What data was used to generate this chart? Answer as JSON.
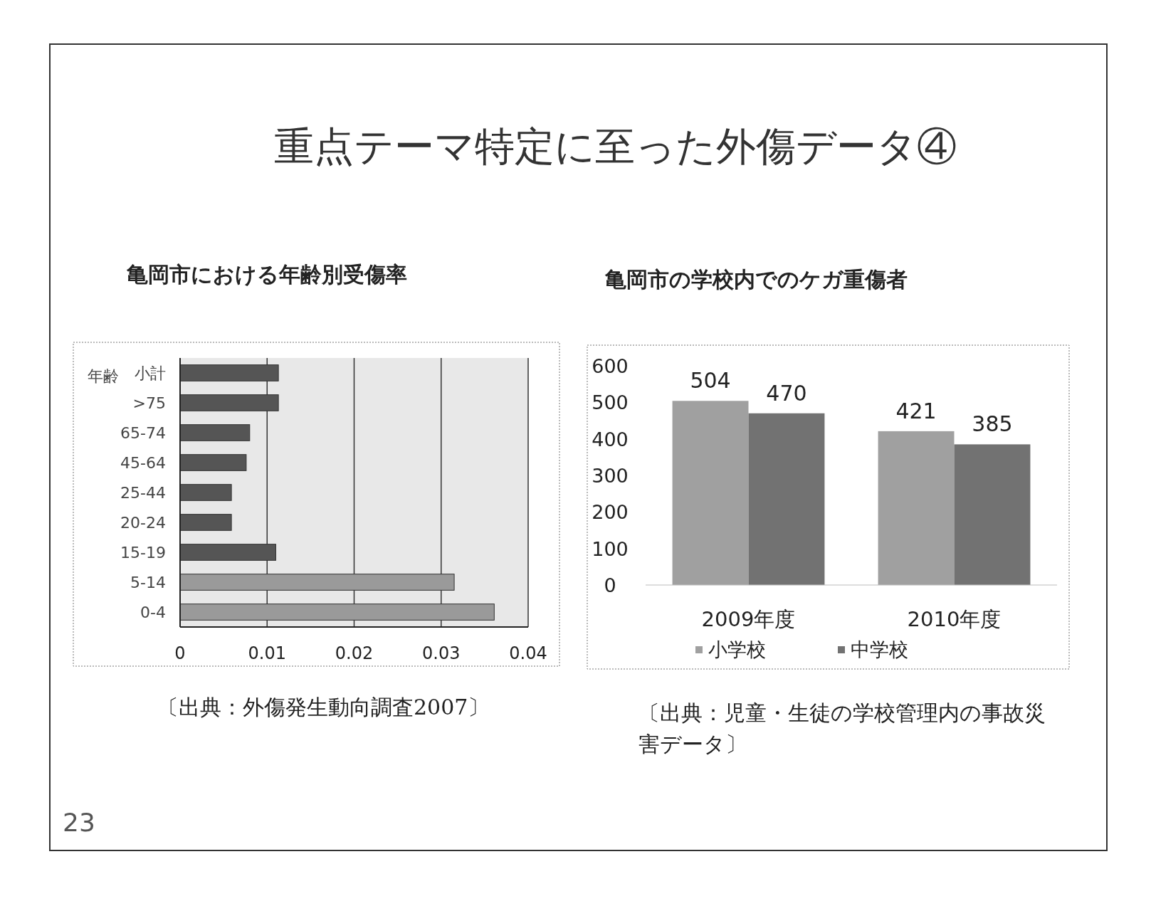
{
  "chart_data": [
    {
      "type": "other",
      "title": "重点テーマ特定に至った外傷データ④",
      "annotations": [
        "23"
      ]
    },
    {
      "type": "bar",
      "orientation": "horizontal",
      "title": "亀岡市における年齢別受傷率",
      "ylabel": "年齢",
      "categories": [
        "小計",
        ">75",
        "65-74",
        "45-64",
        "25-44",
        "20-24",
        "15-19",
        "5-14",
        "0-4"
      ],
      "values": [
        0.0113,
        0.0113,
        0.008,
        0.0076,
        0.0059,
        0.0059,
        0.011,
        0.0315,
        0.0361
      ],
      "colors": [
        "#555555",
        "#555555",
        "#555555",
        "#555555",
        "#555555",
        "#555555",
        "#555555",
        "#9a9a9a",
        "#9a9a9a"
      ],
      "xlim": [
        0,
        0.04
      ],
      "xticks": [
        0,
        0.01,
        0.02,
        0.03,
        0.04
      ],
      "grid": "x",
      "annotations": [
        "〔出典：外傷発生動向調査2007〕"
      ]
    },
    {
      "type": "bar",
      "title": "亀岡市の学校内でのケガ重傷者",
      "categories": [
        "2009年度",
        "2010年度"
      ],
      "series": [
        {
          "name": "小学校",
          "color": "#a0a0a0",
          "values": [
            504,
            421
          ]
        },
        {
          "name": "中学校",
          "color": "#727272",
          "values": [
            470,
            385
          ]
        }
      ],
      "ylim": [
        0,
        600
      ],
      "yticks": [
        0,
        100,
        200,
        300,
        400,
        500,
        600
      ],
      "data_labels": true,
      "legend": "bottom",
      "annotations": [
        "〔出典：児童・生徒の学校管理内の事故災害データ〕"
      ]
    }
  ]
}
